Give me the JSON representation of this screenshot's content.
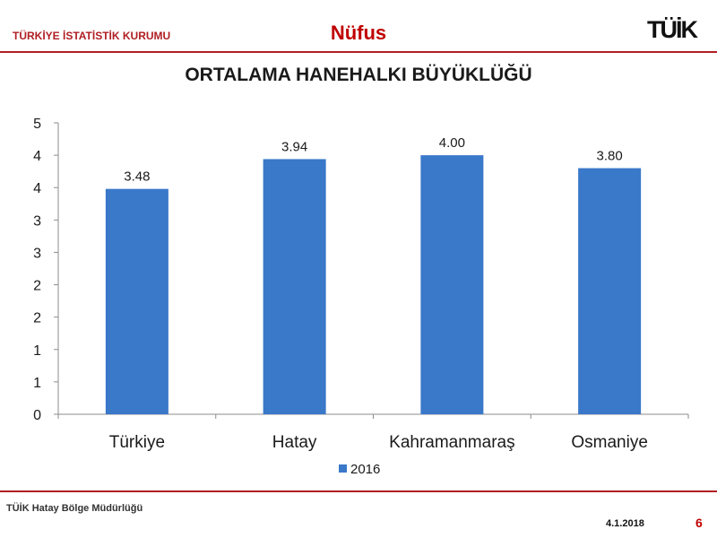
{
  "header": {
    "organization": "TÜRKİYE İSTATİSTİK KURUMU",
    "section_title": "Nüfus",
    "logo_text": "TÜİK"
  },
  "footer": {
    "office": "TÜİK Hatay Bölge Müdürlüğü",
    "date": "4.1.2018",
    "page_number": "6"
  },
  "colors": {
    "accent_red": "#b01e23",
    "bar_blue": "#3a78c9"
  },
  "chart_data": {
    "type": "bar",
    "title": "ORTALAMA HANEHALKI BÜYÜKLÜĞÜ",
    "categories": [
      "Türkiye",
      "Hatay",
      "Kahramanmaraş",
      "Osmaniye"
    ],
    "series": [
      {
        "name": "2016",
        "values": [
          3.48,
          3.94,
          4.0,
          3.8
        ],
        "labels": [
          "3.48",
          "3.94",
          "4.00",
          "3.80"
        ]
      }
    ],
    "ylim": [
      0,
      4.5
    ],
    "yticks": [
      0,
      0.5,
      1,
      1.5,
      2,
      2.5,
      3,
      3.5,
      4,
      4.5
    ],
    "ytick_labels": [
      "0",
      "1",
      "1",
      "2",
      "2",
      "3",
      "3",
      "4",
      "4",
      "5"
    ],
    "legend": "bottom",
    "grid": false
  }
}
